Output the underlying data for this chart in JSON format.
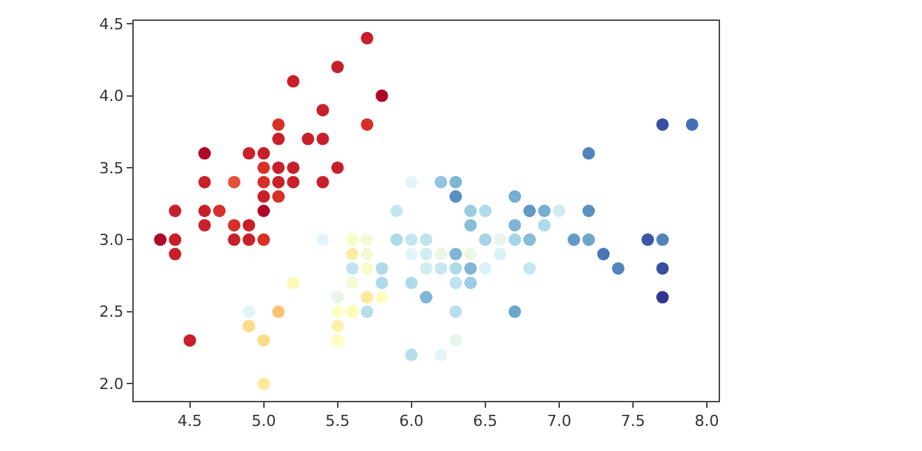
{
  "chart_data": {
    "type": "scatter",
    "marker": "circle",
    "xlim": [
      4.12,
      8.08
    ],
    "ylim": [
      1.88,
      4.52
    ],
    "xticks": [
      {
        "value": 4.5,
        "label": "4.5"
      },
      {
        "value": 5.0,
        "label": "5.0"
      },
      {
        "value": 5.5,
        "label": "5.5"
      },
      {
        "value": 6.0,
        "label": "6.0"
      },
      {
        "value": 6.5,
        "label": "6.5"
      },
      {
        "value": 7.0,
        "label": "7.0"
      },
      {
        "value": 7.5,
        "label": "7.5"
      },
      {
        "value": 8.0,
        "label": "8.0"
      }
    ],
    "yticks": [
      {
        "value": 2.0,
        "label": "2.0"
      },
      {
        "value": 2.5,
        "label": "2.5"
      },
      {
        "value": 3.0,
        "label": "3.0"
      },
      {
        "value": 3.5,
        "label": "3.5"
      },
      {
        "value": 4.0,
        "label": "4.0"
      },
      {
        "value": 4.5,
        "label": "4.5"
      }
    ],
    "x": [
      5.1,
      4.9,
      4.7,
      4.6,
      5.0,
      5.4,
      4.6,
      5.0,
      4.4,
      4.9,
      5.4,
      4.8,
      4.8,
      4.3,
      5.8,
      5.7,
      5.7,
      5.1,
      5.4,
      5.1,
      4.6,
      5.1,
      5.0,
      5.2,
      5.2,
      4.8,
      5.2,
      5.5,
      5.0,
      5.5,
      4.9,
      4.4,
      5.1,
      5.0,
      4.5,
      4.4,
      4.6,
      5.3,
      5.0,
      7.0,
      6.9,
      5.5,
      6.5,
      5.7,
      4.9,
      6.6,
      5.2,
      5.0,
      6.1,
      5.6,
      6.7,
      6.2,
      5.6,
      5.9,
      6.1,
      6.4,
      6.6,
      6.8,
      6.7,
      6.0,
      5.7,
      5.5,
      6.0,
      5.4,
      6.0,
      6.3,
      5.6,
      5.5,
      5.5,
      6.1,
      5.8,
      5.0,
      5.6,
      5.7,
      5.7,
      6.2,
      5.1,
      6.3,
      5.8,
      7.1,
      6.3,
      6.5,
      7.6,
      4.9,
      7.3,
      6.7,
      7.2,
      6.5,
      6.4,
      6.8,
      5.7,
      5.8,
      6.4,
      7.7,
      7.7,
      6.0,
      6.9,
      5.6,
      7.7,
      6.3,
      6.7,
      7.2,
      6.2,
      6.4,
      7.2,
      7.4,
      7.9,
      6.3,
      6.1,
      7.7,
      6.3,
      6.4,
      6.0,
      6.8,
      6.3,
      6.2,
      5.9
    ],
    "values": [
      3.5,
      3.0,
      3.2,
      3.1,
      3.6,
      3.9,
      3.4,
      3.4,
      2.9,
      3.1,
      3.7,
      3.4,
      3.0,
      3.0,
      4.0,
      4.4,
      3.8,
      3.8,
      3.4,
      3.7,
      3.6,
      3.3,
      3.0,
      3.5,
      3.4,
      3.1,
      4.1,
      4.2,
      3.2,
      3.5,
      3.6,
      3.0,
      3.4,
      3.5,
      2.3,
      3.2,
      3.2,
      3.7,
      3.3,
      3.2,
      3.1,
      2.3,
      2.8,
      2.8,
      2.4,
      2.9,
      2.7,
      2.0,
      2.9,
      2.9,
      3.1,
      2.2,
      2.5,
      3.2,
      2.8,
      2.9,
      3.0,
      2.8,
      3.0,
      2.9,
      2.6,
      2.4,
      2.7,
      3.0,
      3.4,
      2.3,
      3.0,
      2.5,
      2.6,
      3.0,
      2.6,
      2.3,
      2.7,
      3.0,
      2.9,
      2.9,
      2.5,
      3.3,
      2.7,
      3.0,
      2.9,
      3.0,
      3.0,
      2.5,
      2.9,
      2.5,
      3.6,
      3.2,
      2.7,
      3.0,
      2.5,
      2.8,
      3.2,
      3.8,
      2.6,
      2.2,
      3.2,
      2.8,
      2.8,
      2.7,
      3.3,
      3.2,
      2.8,
      2.8,
      3.0,
      2.8,
      3.8,
      2.8,
      2.6,
      3.0,
      3.4,
      3.1,
      3.0,
      3.2,
      2.5,
      3.4,
      3.0
    ],
    "colors": [
      "#c8202a",
      "#c8202a",
      "#d73027",
      "#c8202a",
      "#c8202a",
      "#c8202a",
      "#c8202a",
      "#d73027",
      "#c8202a",
      "#c8202a",
      "#c8202a",
      "#e54f35",
      "#c8202a",
      "#b0082a",
      "#b0082a",
      "#c8202a",
      "#d73027",
      "#d73027",
      "#c8202a",
      "#c8202a",
      "#b0082a",
      "#d73027",
      "#d73027",
      "#c8202a",
      "#c8202a",
      "#d73027",
      "#c8202a",
      "#c8202a",
      "#b0082a",
      "#c8202a",
      "#c8202a",
      "#c8202a",
      "#c8202a",
      "#d73027",
      "#c8202a",
      "#c8202a",
      "#c8202a",
      "#c8202a",
      "#c8202a",
      "#d0ebf2",
      "#aedaea",
      "#fffebe",
      "#dbf1f6",
      "#f7fcc9",
      "#fedb8b",
      "#dbf1f6",
      "#fffab7",
      "#fee89b",
      "#d0ebf2",
      "#feeda3",
      "#7fb5d5",
      "#e2f4f8",
      "#fffab7",
      "#c5e6f0",
      "#d0ebf2",
      "#ebf7e3",
      "#e7f5ed",
      "#c5e6f0",
      "#a5d4e6",
      "#e2f4f8",
      "#fee89b",
      "#fef1aa",
      "#aedaea",
      "#e2f4f8",
      "#e2f4f8",
      "#e7f5ed",
      "#f7fcc9",
      "#fffebe",
      "#e7f5ed",
      "#bfe2ee",
      "#fffebe",
      "#fedb8b",
      "#f2fad6",
      "#f2fad6",
      "#f2fad6",
      "#ebf7e3",
      "#fdc270",
      "#5b8fc0",
      "#aedaea",
      "#6399c6",
      "#7fb5d5",
      "#a5d4e6",
      "#3b56a4",
      "#e2f4f8",
      "#4676b4",
      "#6da5cd",
      "#5284bb",
      "#aedaea",
      "#9bcce2",
      "#88bdda",
      "#b6deec",
      "#aedaea",
      "#9bcce2",
      "#384ea0",
      "#313695",
      "#b6deec",
      "#75aed1",
      "#bfe2ee",
      "#384ea0",
      "#bfe2ee",
      "#75aed1",
      "#5b8fc0",
      "#c5e6f0",
      "#7fb5d5",
      "#6da5cd",
      "#5284bb",
      "#4470b1",
      "#aedaea",
      "#7fb5d5",
      "#5284bb",
      "#7fb5d5",
      "#88bdda",
      "#c5e6f0",
      "#6399c6",
      "#b6deec",
      "#91c4de",
      "#aedaea"
    ]
  }
}
